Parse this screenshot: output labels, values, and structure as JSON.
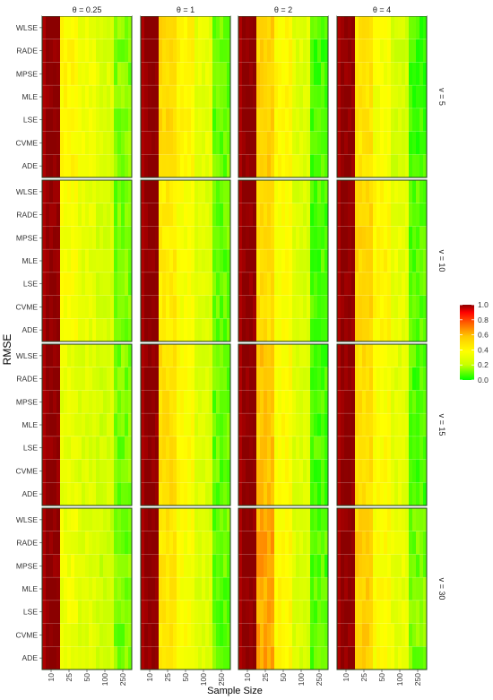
{
  "chart_data": {
    "type": "heatmap",
    "xlabel": "Sample Size",
    "ylabel": "RMSE",
    "x_categories": [
      "10",
      "25",
      "50",
      "100",
      "250"
    ],
    "y_categories": [
      "WLSE",
      "RADE",
      "MPSE",
      "MLE",
      "LSE",
      "CVME",
      "ADE"
    ],
    "column_facets": [
      "θ = 0.25",
      "θ = 1",
      "θ = 2",
      "θ = 4"
    ],
    "row_facets": [
      "v = 5",
      "v = 10",
      "v = 15",
      "v = 30"
    ],
    "legend": {
      "ticks": [
        "1.0",
        "0.8",
        "0.6",
        "0.4",
        "0.2",
        "0.0"
      ],
      "range": [
        0,
        1
      ],
      "placement": "right",
      "colors": [
        "#00ff00",
        "#c8ff00",
        "#ffff00",
        "#ffc800",
        "#ff6400",
        "#ff0000",
        "#8b0000"
      ]
    },
    "facet_values": [
      [
        {
          "theta": "θ = 0.25",
          "v": "v = 5",
          "values_by_sample_size": [
            1.0,
            0.4,
            0.33,
            0.27,
            0.13
          ]
        },
        {
          "theta": "θ = 1",
          "v": "v = 5",
          "values_by_sample_size": [
            1.0,
            0.52,
            0.41,
            0.3,
            0.1
          ]
        },
        {
          "theta": "θ = 2",
          "v": "v = 5",
          "values_by_sample_size": [
            1.0,
            0.55,
            0.4,
            0.28,
            0.07
          ]
        },
        {
          "theta": "θ = 4",
          "v": "v = 5",
          "values_by_sample_size": [
            1.0,
            0.48,
            0.35,
            0.24,
            0.07
          ]
        }
      ],
      [
        {
          "theta": "θ = 0.25",
          "v": "v = 10",
          "values_by_sample_size": [
            1.0,
            0.36,
            0.3,
            0.24,
            0.12
          ]
        },
        {
          "theta": "θ = 1",
          "v": "v = 10",
          "values_by_sample_size": [
            1.0,
            0.45,
            0.36,
            0.27,
            0.1
          ]
        },
        {
          "theta": "θ = 2",
          "v": "v = 10",
          "values_by_sample_size": [
            1.0,
            0.5,
            0.37,
            0.26,
            0.07
          ]
        },
        {
          "theta": "θ = 4",
          "v": "v = 10",
          "values_by_sample_size": [
            1.0,
            0.53,
            0.41,
            0.31,
            0.09
          ]
        }
      ],
      [
        {
          "theta": "θ = 0.25",
          "v": "v = 15",
          "values_by_sample_size": [
            1.0,
            0.3,
            0.27,
            0.24,
            0.12
          ]
        },
        {
          "theta": "θ = 1",
          "v": "v = 15",
          "values_by_sample_size": [
            1.0,
            0.5,
            0.38,
            0.27,
            0.1
          ]
        },
        {
          "theta": "θ = 2",
          "v": "v = 15",
          "values_by_sample_size": [
            1.0,
            0.58,
            0.38,
            0.27,
            0.07
          ]
        },
        {
          "theta": "θ = 4",
          "v": "v = 15",
          "values_by_sample_size": [
            1.0,
            0.5,
            0.38,
            0.29,
            0.08
          ]
        }
      ],
      [
        {
          "theta": "θ = 0.25",
          "v": "v = 30",
          "values_by_sample_size": [
            1.0,
            0.33,
            0.28,
            0.23,
            0.12
          ]
        },
        {
          "theta": "θ = 1",
          "v": "v = 30",
          "values_by_sample_size": [
            1.0,
            0.47,
            0.37,
            0.27,
            0.1
          ]
        },
        {
          "theta": "θ = 2",
          "v": "v = 30",
          "values_by_sample_size": [
            1.0,
            0.64,
            0.4,
            0.26,
            0.08
          ]
        },
        {
          "theta": "θ = 4",
          "v": "v = 30",
          "values_by_sample_size": [
            1.0,
            0.55,
            0.38,
            0.31,
            0.12
          ]
        }
      ]
    ]
  }
}
